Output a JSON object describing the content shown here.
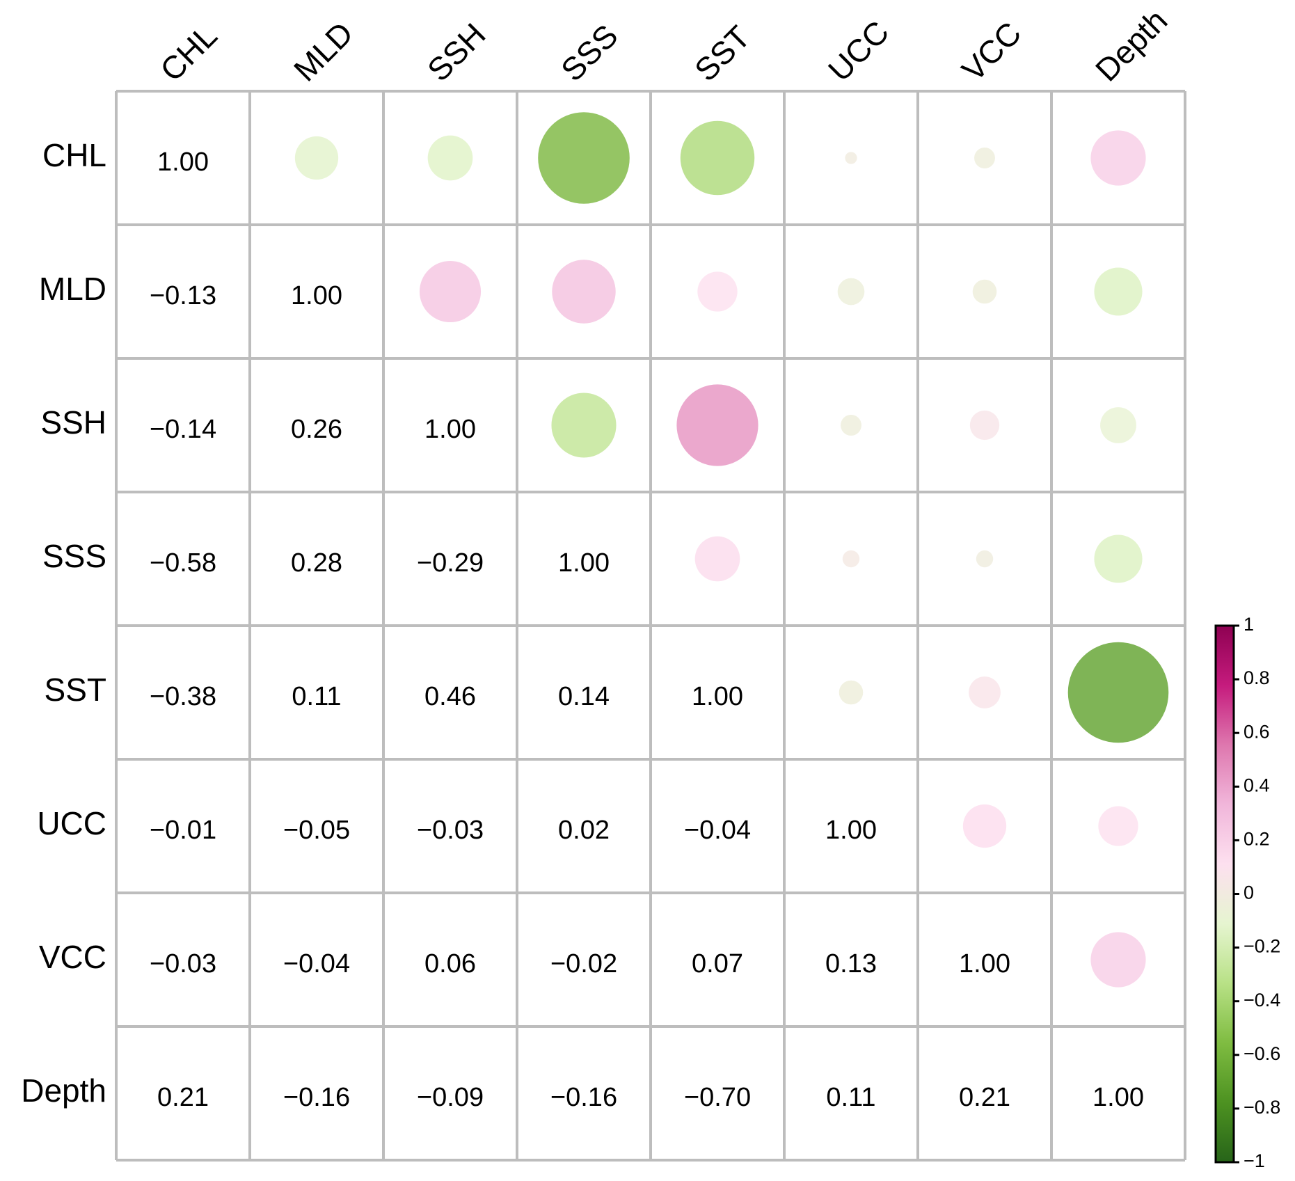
{
  "chart_data": {
    "type": "corrplot",
    "labels": [
      "CHL",
      "MLD",
      "SSH",
      "SSS",
      "SST",
      "UCC",
      "VCC",
      "Depth"
    ],
    "matrix": [
      [
        1,
        -0.13,
        -0.14,
        -0.58,
        -0.38,
        -0.01,
        -0.03,
        0.21
      ],
      [
        -0.13,
        1,
        0.26,
        0.28,
        0.11,
        -0.05,
        -0.04,
        -0.16
      ],
      [
        -0.14,
        0.26,
        1,
        -0.29,
        0.46,
        -0.03,
        0.06,
        -0.09
      ],
      [
        -0.58,
        0.28,
        -0.29,
        1,
        0.14,
        0.02,
        -0.02,
        -0.16
      ],
      [
        -0.38,
        0.11,
        0.46,
        0.14,
        1,
        -0.04,
        0.07,
        -0.7
      ],
      [
        -0.01,
        -0.05,
        -0.03,
        0.02,
        -0.04,
        1,
        0.13,
        0.11
      ],
      [
        -0.03,
        -0.04,
        0.06,
        -0.02,
        0.07,
        0.13,
        1,
        0.21
      ],
      [
        0.21,
        -0.16,
        -0.09,
        -0.16,
        -0.7,
        0.11,
        0.21,
        1
      ]
    ],
    "value_labels": [
      [
        "1.00",
        null,
        null,
        null,
        null,
        null,
        null,
        null
      ],
      [
        "−0.13",
        "1.00",
        null,
        null,
        null,
        null,
        null,
        null
      ],
      [
        "−0.14",
        "0.26",
        "1.00",
        null,
        null,
        null,
        null,
        null
      ],
      [
        "−0.58",
        "0.28",
        "−0.29",
        "1.00",
        null,
        null,
        null,
        null
      ],
      [
        "−0.38",
        "0.11",
        "0.46",
        "0.14",
        "1.00",
        null,
        null,
        null
      ],
      [
        "−0.01",
        "−0.05",
        "−0.03",
        "0.02",
        "−0.04",
        "1.00",
        null,
        null
      ],
      [
        "−0.03",
        "−0.04",
        "0.06",
        "−0.02",
        "0.07",
        "0.13",
        "1.00",
        null
      ],
      [
        "0.21",
        "−0.16",
        "−0.09",
        "−0.16",
        "−0.70",
        "0.11",
        "0.21",
        "1.00"
      ]
    ],
    "colormap": [
      "#276419",
      "#4d9221",
      "#7fbc41",
      "#b8e186",
      "#e6f5d0",
      "#fde0ef",
      "#f1b6da",
      "#de77ae",
      "#c51b7d",
      "#8e0152"
    ],
    "clim": [
      -1,
      1
    ],
    "cticks": [
      1,
      0.8,
      0.6,
      0.4,
      0.2,
      0,
      {
        "value": -0.2,
        "label": "−0.2"
      },
      {
        "value": -0.4,
        "label": "−0.4"
      },
      {
        "value": -0.6,
        "label": "−0.6"
      },
      {
        "value": -0.8,
        "label": "−0.8"
      },
      {
        "value": -1,
        "label": "−1"
      }
    ]
  }
}
